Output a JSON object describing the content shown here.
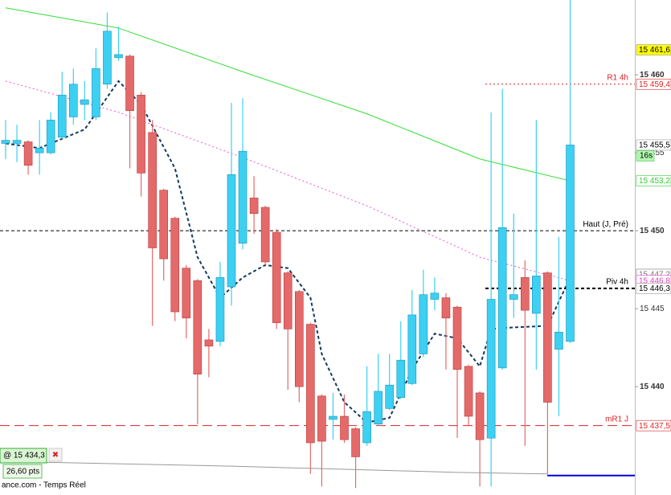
{
  "chart_data": {
    "type": "candlestick",
    "ylim": [
      15433.05,
      15464.8
    ],
    "yticks": [
      {
        "value": 15440,
        "label": "15 440"
      },
      {
        "value": 15445,
        "label": "15 445"
      },
      {
        "value": 15450,
        "label": "15 450"
      },
      {
        "value": 15455,
        "label": "15 455"
      },
      {
        "value": 15460,
        "label": "15 460"
      }
    ],
    "up_color": "#3cd0f2",
    "down_color": "#e46a6a",
    "open": [
      15455.6,
      15455.6,
      15455.7,
      15455.0,
      15455.0,
      15456.0,
      15457.3,
      15458.1,
      15457.3,
      15459.4,
      15461.1,
      15461.2,
      15458.7,
      15456.3,
      15452.6,
      15450.8,
      15447.6,
      15446.8,
      15443.0,
      15442.9,
      15446.4,
      15449.2,
      15452.1,
      15451.5,
      15449.9,
      15447.3,
      15446.1,
      15444.0,
      15439.4,
      15437.9,
      15438.1,
      15437.3,
      15436.4,
      15437.6,
      15438.6,
      15439.3,
      15440.2,
      15442.1,
      15445.6,
      15445.7,
      15445.1,
      15441.3,
      15439.6,
      15436.7,
      15441.2,
      15445.6,
      15447.0,
      15444.7,
      15447.3,
      15442.4,
      15442.9
    ],
    "high": [
      15457.1,
      15456.8,
      15455.8,
      15457.1,
      15457.6,
      15460.2,
      15460.4,
      15459.6,
      15461.7,
      15464.0,
      15463.1,
      15461.3,
      15458.9,
      15457.1,
      15452.7,
      15450.9,
      15447.8,
      15446.9,
      15443.7,
      15448.0,
      15458.2,
      15458.5,
      15453.5,
      15451.6,
      15450.1,
      15447.4,
      15446.2,
      15444.1,
      15439.5,
      15439.6,
      15439.5,
      15437.4,
      15441.3,
      15442.1,
      15442.1,
      15444.2,
      15446.2,
      15447.5,
      15447.0,
      15446.0,
      15445.2,
      15441.4,
      15439.7,
      15457.6,
      15459.1,
      15451.1,
      15448.1,
      15457.1,
      15447.4,
      15449.6,
      15464.8
    ],
    "low": [
      15454.6,
      15454.4,
      15453.6,
      15453.6,
      15454.9,
      15455.9,
      15456.8,
      15457.1,
      15457.1,
      15459.1,
      15460.9,
      15454.0,
      15452.2,
      15443.9,
      15446.8,
      15444.2,
      15443.1,
      15437.6,
      15440.6,
      15442.6,
      15445.2,
      15448.8,
      15449.8,
      15447.8,
      15443.7,
      15439.8,
      15439.0,
      15434.4,
      15433.6,
      15436.6,
      15436.4,
      15433.5,
      15436.2,
      15437.5,
      15438.5,
      15439.2,
      15440.1,
      15441.9,
      15444.9,
      15441.1,
      15436.7,
      15437.5,
      15433.6,
      15433.6,
      15441.1,
      15444.4,
      15436.2,
      15441.1,
      15434.4,
      15438.1,
      15442.8
    ],
    "close": [
      15455.8,
      15455.8,
      15454.2,
      15455.3,
      15457.1,
      15458.7,
      15459.4,
      15458.4,
      15460.4,
      15462.8,
      15461.3,
      15457.7,
      15453.7,
      15448.9,
      15448.2,
      15444.8,
      15444.4,
      15440.8,
      15442.6,
      15447.0,
      15453.6,
      15455.1,
      15451.1,
      15448.0,
      15444.1,
      15443.7,
      15440.0,
      15436.4,
      15436.5,
      15438.1,
      15436.6,
      15435.5,
      15438.4,
      15439.7,
      15440.1,
      15441.7,
      15444.6,
      15445.9,
      15446.0,
      15444.4,
      15441.1,
      15438.1,
      15436.6,
      15445.6,
      15450.2,
      15445.9,
      15444.9,
      15447.1,
      15439.0,
      15443.5,
      15455.5
    ],
    "overlays": [
      {
        "color": "#33dd33",
        "style": "solid",
        "x": [
          0,
          10,
          21,
          32,
          42,
          50
        ],
        "values": [
          15464.3,
          15463.0,
          15460.2,
          15457.5,
          15454.6,
          15453.2
        ]
      },
      {
        "color": "#ee55cc",
        "style": "dotted",
        "x": [
          0,
          10,
          21,
          32,
          42,
          50
        ],
        "values": [
          15459.6,
          15457.6,
          15454.7,
          15451.6,
          15448.3,
          15446.8
        ]
      },
      {
        "color": "#143a60",
        "style": "dashed",
        "x": [
          0,
          3,
          7,
          10,
          12,
          15,
          17,
          19,
          21,
          23,
          25,
          27,
          28,
          30,
          32,
          34,
          36,
          38,
          40,
          42,
          43,
          45,
          48,
          50
        ],
        "values": [
          15455.6,
          15455.3,
          15456.5,
          15459.6,
          15458.1,
          15454.0,
          15448.3,
          15445.7,
          15447.0,
          15447.8,
          15447.6,
          15445.7,
          15442.1,
          15439.0,
          15437.7,
          15438.0,
          15441.1,
          15443.4,
          15443.1,
          15441.3,
          15443.7,
          15443.8,
          15443.9,
          15447.0
        ]
      },
      {
        "color": "#999999",
        "style": "solid",
        "x": [
          0,
          20,
          40,
          48
        ],
        "values": [
          15435.2,
          15434.9,
          15434.5,
          15434.4
        ]
      }
    ],
    "levels": [
      {
        "name": "R1 4h",
        "value": 15459.4,
        "color": "#dd2222",
        "style": "dotted"
      },
      {
        "name": "Haut (J, Pré)",
        "value": 15450,
        "color": "#000000",
        "style": "dashed"
      },
      {
        "name": "Piv 4h",
        "value": 15446.3,
        "color": "#000000",
        "style": "bold"
      },
      {
        "name": "mR1 J",
        "value": 15437.5,
        "color": "#dd2222",
        "style": "longdash"
      }
    ],
    "price_labels": [
      {
        "value": 15461.6,
        "label": "15 461,6",
        "color": "#000000",
        "fill": "#ffff00"
      },
      {
        "value": 15459.4,
        "label": "15 459,4",
        "color": "#dd2222",
        "fill": "#ffffff"
      },
      {
        "value": 15455.5,
        "label": "15 455,5",
        "color": "#000000",
        "fill": "#ffffff"
      },
      {
        "value": 15453.2,
        "label": "15 453,2",
        "color": "#33cc33",
        "fill": "#ffffff"
      },
      {
        "value": 15447.2,
        "label": "15 447,2",
        "color": "#777777",
        "fill": "#ffffff"
      },
      {
        "value": 15446.8,
        "label": "15 446,8",
        "color": "#dd44bb",
        "fill": "#ffffff"
      },
      {
        "value": 15446.3,
        "label": "15 446,3",
        "color": "#000000",
        "fill": "#ffffff"
      },
      {
        "value": 15437.5,
        "label": "15 437,5",
        "color": "#dd2222",
        "fill": "#ffffff"
      }
    ],
    "timer": "16s",
    "order": {
      "value": 15434.3,
      "label": "@ 15 434,3",
      "close": "✖",
      "pts": "26,60 pts",
      "color": "#0000dd"
    },
    "source": "ance.com - Temps Réel"
  }
}
